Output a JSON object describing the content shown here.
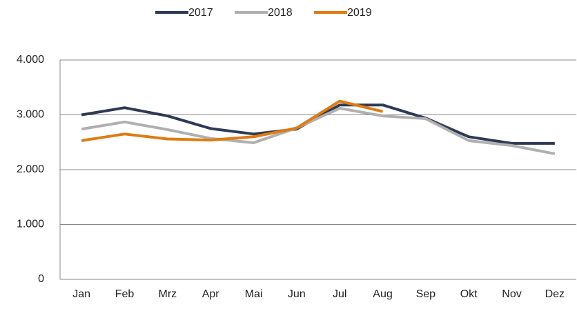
{
  "chart_data": {
    "type": "line",
    "categories": [
      "Jan",
      "Feb",
      "Mrz",
      "Apr",
      "Mai",
      "Jun",
      "Jul",
      "Aug",
      "Sep",
      "Okt",
      "Nov",
      "Dez"
    ],
    "series": [
      {
        "name": "2017",
        "color": "#2e3a55",
        "values": [
          3000,
          3130,
          2980,
          2750,
          2650,
          2740,
          3180,
          3180,
          2940,
          2600,
          2480,
          2480
        ]
      },
      {
        "name": "2018",
        "color": "#b0b0b0",
        "values": [
          2740,
          2870,
          2730,
          2570,
          2490,
          2760,
          3120,
          2980,
          2930,
          2530,
          2440,
          2290
        ]
      },
      {
        "name": "2019",
        "color": "#e07b10",
        "values": [
          2530,
          2650,
          2560,
          2540,
          2600,
          2760,
          3250,
          3060,
          null,
          null,
          null,
          null
        ]
      }
    ],
    "ylim": [
      0,
      4000
    ],
    "yticks": [
      0,
      {
        "value": 1000,
        "label": "1.000"
      },
      {
        "value": 2000,
        "label": "2.000"
      },
      {
        "value": 3000,
        "label": "3.000"
      },
      {
        "value": 4000,
        "label": "4.000"
      }
    ],
    "grid": true
  }
}
